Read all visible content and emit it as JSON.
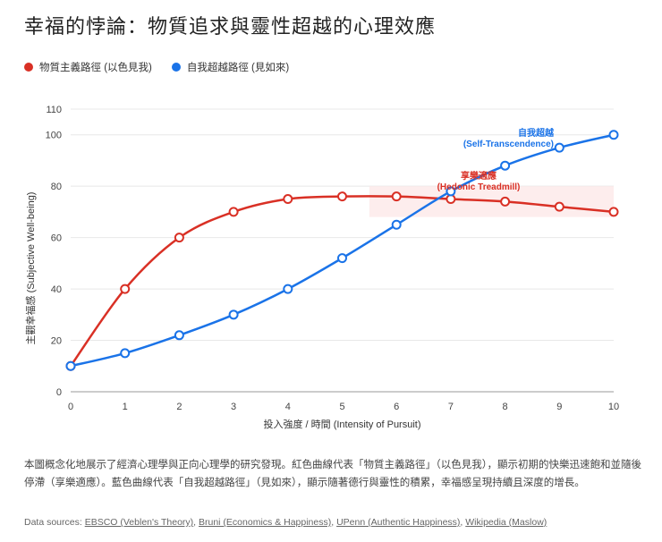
{
  "title": "幸福的悖論：物質追求與靈性超越的心理效應",
  "chart_data": {
    "type": "line",
    "title": "幸福的悖論：物質追求與靈性超越的心理效應",
    "xlabel": "投入強度 / 時間 (Intensity of Pursuit)",
    "ylabel": "主觀幸福感 (Subjective Well-being)",
    "x": [
      0,
      1,
      2,
      3,
      4,
      5,
      6,
      7,
      8,
      9,
      10
    ],
    "xlim": [
      0,
      10
    ],
    "ylim": [
      0,
      110
    ],
    "yticks": [
      0,
      20,
      40,
      60,
      80,
      100,
      110
    ],
    "legend_position": "top-left",
    "series": [
      {
        "name": "物質主義路徑 (以色見我)",
        "color": "#d93025",
        "values": [
          10,
          40,
          60,
          70,
          75,
          76,
          76,
          75,
          74,
          72,
          70
        ]
      },
      {
        "name": "自我超越路徑 (見如來)",
        "color": "#1a73e8",
        "values": [
          10,
          15,
          22,
          30,
          40,
          52,
          65,
          78,
          88,
          95,
          100
        ]
      }
    ],
    "annotations": [
      {
        "text": "自我超越",
        "text2": "(Self-Transcendence)",
        "x": 9,
        "y": 95,
        "color": "#1a73e8"
      },
      {
        "text": "享樂適應",
        "text2": "(Hedonic Treadmill)",
        "x": 7,
        "y": 80,
        "color": "#d93025"
      }
    ],
    "band": {
      "x": [
        5.5,
        10
      ],
      "y": [
        68,
        80
      ],
      "color": "#fde8e8"
    }
  },
  "description": "本圖概念化地展示了經濟心理學與正向心理學的研究發現。紅色曲線代表「物質主義路徑」（以色見我），顯示初期的快樂迅速飽和並隨後停滯（享樂適應）。藍色曲線代表「自我超越路徑」（見如來），顯示隨著德行與靈性的積累，幸福感呈現持續且深度的增長。",
  "sources": {
    "label": "Data sources:",
    "links": [
      "EBSCO (Veblen's Theory)",
      "Bruni (Economics & Happiness)",
      "UPenn (Authentic Happiness)",
      "Wikipedia (Maslow)"
    ]
  }
}
